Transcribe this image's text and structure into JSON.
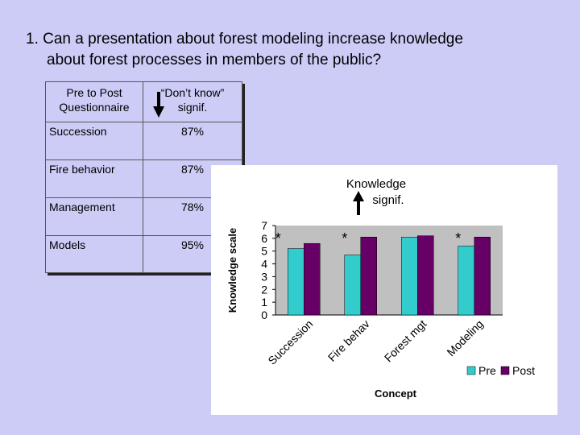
{
  "slide": {
    "title_line1": "1. Can a presentation about forest modeling increase knowledge",
    "title_line2": "about forest processes in members of the public?"
  },
  "table": {
    "header_col1": "Pre to Post Questionnaire",
    "header_col2": "“Don’t know” signif.",
    "header_col2_arrow": "down-arrow-icon",
    "rows": [
      {
        "label": "Succession",
        "value": "87%"
      },
      {
        "label": "Fire behavior",
        "value": "87%"
      },
      {
        "label": "Management",
        "value": "78%"
      },
      {
        "label": "Models",
        "value": "95%"
      }
    ]
  },
  "annotation": {
    "line1": "Knowledge",
    "line2": "signif.",
    "arrow": "up-arrow-icon"
  },
  "chart_data": {
    "type": "bar",
    "categories": [
      "Succession",
      "Fire behav",
      "Forest mgt",
      "Modeling"
    ],
    "series": [
      {
        "name": "Pre",
        "color": "#33cccc",
        "values": [
          5.2,
          4.7,
          6.1,
          5.4
        ]
      },
      {
        "name": "Post",
        "color": "#660066",
        "values": [
          5.6,
          6.1,
          6.2,
          6.1
        ]
      }
    ],
    "significance_marks": [
      "*",
      "*",
      "",
      "*"
    ],
    "xlabel": "Concept",
    "ylabel": "Knowledge scale",
    "ylim": [
      0,
      7
    ],
    "yticks": [
      "0",
      "1",
      "2",
      "3",
      "4",
      "5",
      "6",
      "7"
    ],
    "grid": false,
    "legend_position": "bottom-right"
  }
}
